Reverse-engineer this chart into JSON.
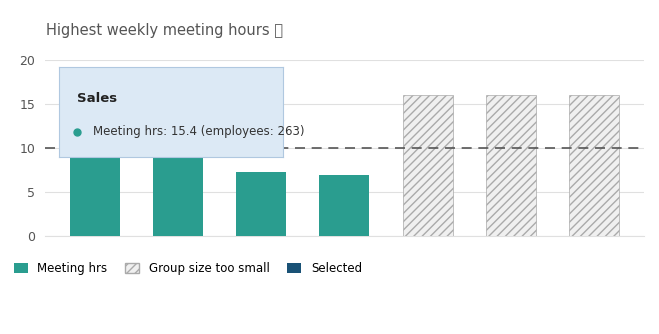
{
  "title": "Highest weekly meeting hours ⓘ",
  "bars_solid": [
    15.4,
    9.8,
    7.3,
    7.0
  ],
  "bars_hatched": [
    16.0,
    16.0,
    16.0
  ],
  "bar_color_solid": "#2a9d8f",
  "bar_color_selected": "#1a5276",
  "bar_color_hatched_face": "#f0f0f0",
  "bar_color_hatched_edge": "#aaaaaa",
  "threshold": 10,
  "ylim": [
    0,
    20
  ],
  "yticks": [
    0,
    5,
    10,
    15,
    20
  ],
  "n_total_bars": 7,
  "legend_meeting_hrs": "Meeting hrs",
  "legend_group_small": "Group size too small",
  "legend_selected": "Selected",
  "tooltip_title": "Sales",
  "tooltip_text": "Meeting hrs: 15.4 (employees: 263)",
  "bg_color": "#ffffff",
  "grid_color": "#e0e0e0",
  "threshold_line_color": "#555555",
  "title_color": "#555555"
}
